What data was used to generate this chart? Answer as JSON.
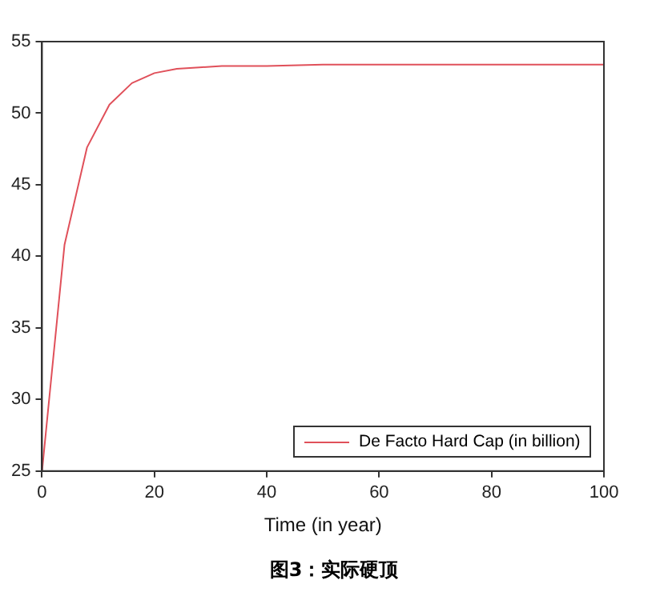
{
  "chart_data": {
    "type": "line",
    "title": "图3：实际硬顶",
    "xlabel": "Time (in year)",
    "x": [
      0,
      4,
      8,
      12,
      16,
      20,
      24,
      28,
      32,
      40,
      50,
      60,
      80,
      100
    ],
    "series": [
      {
        "name": "De Facto Hard Cap (in billion)",
        "color": "#e0505a",
        "values": [
          25,
          40.8,
          47.6,
          50.6,
          52.1,
          52.8,
          53.1,
          53.2,
          53.3,
          53.3,
          53.4,
          53.4,
          53.4,
          53.4
        ]
      }
    ],
    "xlim": [
      0,
      100
    ],
    "xticks": [
      0,
      20,
      40,
      60,
      80,
      100
    ],
    "ylim": [
      25,
      55
    ],
    "yticks": [
      25,
      30,
      35,
      40,
      45,
      50,
      55
    ],
    "grid": false,
    "legend": "bottom right",
    "marker": "none",
    "line_style": "solid"
  }
}
